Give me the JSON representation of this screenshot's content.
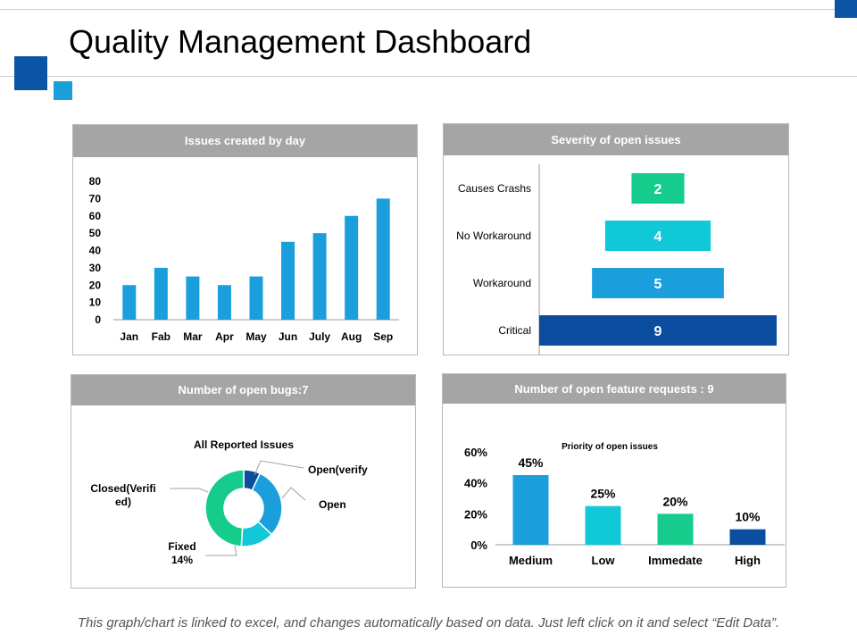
{
  "page": {
    "title": "Quality Management Dashboard",
    "footer": "This graph/chart is linked to excel, and changes automatically based on data. Just left click on it and select “Edit Data”."
  },
  "colors": {
    "header_gray": "#a5a5a5",
    "brand_blue": "#0b55a7",
    "light_blue": "#1aa0d8",
    "bar_blue": "#1a9fdc",
    "cyan": "#11c8d8",
    "green": "#15cc8c",
    "navy": "#0b4d9e"
  },
  "panels": {
    "issues": {
      "header": "Issues created by day"
    },
    "severity": {
      "header": "Severity of open issues"
    },
    "bugs": {
      "header": "Number of open bugs:7"
    },
    "features": {
      "header": "Number of open feature requests : 9"
    }
  },
  "chart_data": [
    {
      "type": "bar",
      "categories": [
        "Jan",
        "Fab",
        "Mar",
        "Apr",
        "May",
        "Jun",
        "July",
        "Aug",
        "Sep"
      ],
      "values": [
        20,
        30,
        25,
        20,
        25,
        45,
        50,
        60,
        70
      ],
      "yticks": [
        "0",
        "10",
        "20",
        "30",
        "40",
        "50",
        "60",
        "70",
        "80"
      ],
      "ylim": [
        0,
        80
      ],
      "color": "#1a9fdc"
    },
    {
      "type": "bar",
      "orientation": "horizontal",
      "categories": [
        "Causes Crashs",
        "No Workaround",
        "Workaround",
        "Critical"
      ],
      "values": [
        2,
        4,
        5,
        9
      ],
      "labels": [
        "2",
        "4",
        "5",
        "9"
      ],
      "colors": [
        "#15cc8c",
        "#11c8d8",
        "#1a9fdc",
        "#0b4d9e"
      ],
      "xlim": [
        0,
        9
      ]
    },
    {
      "type": "pie",
      "style": "donut",
      "title": "All Reported Issues",
      "slices": [
        {
          "label": "Open(verify",
          "value": 7,
          "color": "#0b4d9e"
        },
        {
          "label": "Open",
          "value": 30,
          "color": "#1a9fdc"
        },
        {
          "label": "Fixed\n14%",
          "value": 14,
          "color": "#11c8d8"
        },
        {
          "label": "Closed(Verifi\ned)",
          "value": 49,
          "color": "#15cc8c"
        }
      ]
    },
    {
      "type": "bar",
      "title": "Priority of open issues",
      "categories": [
        "Medium",
        "Low",
        "Immedate",
        "High"
      ],
      "values": [
        45,
        25,
        20,
        10
      ],
      "labels": [
        "45%",
        "25%",
        "20%",
        "10%"
      ],
      "colors": [
        "#1a9fdc",
        "#11c8d8",
        "#15cc8c",
        "#0b4d9e"
      ],
      "yticks": [
        "0%",
        "20%",
        "40%",
        "60%"
      ],
      "ylim": [
        0,
        60
      ]
    }
  ]
}
